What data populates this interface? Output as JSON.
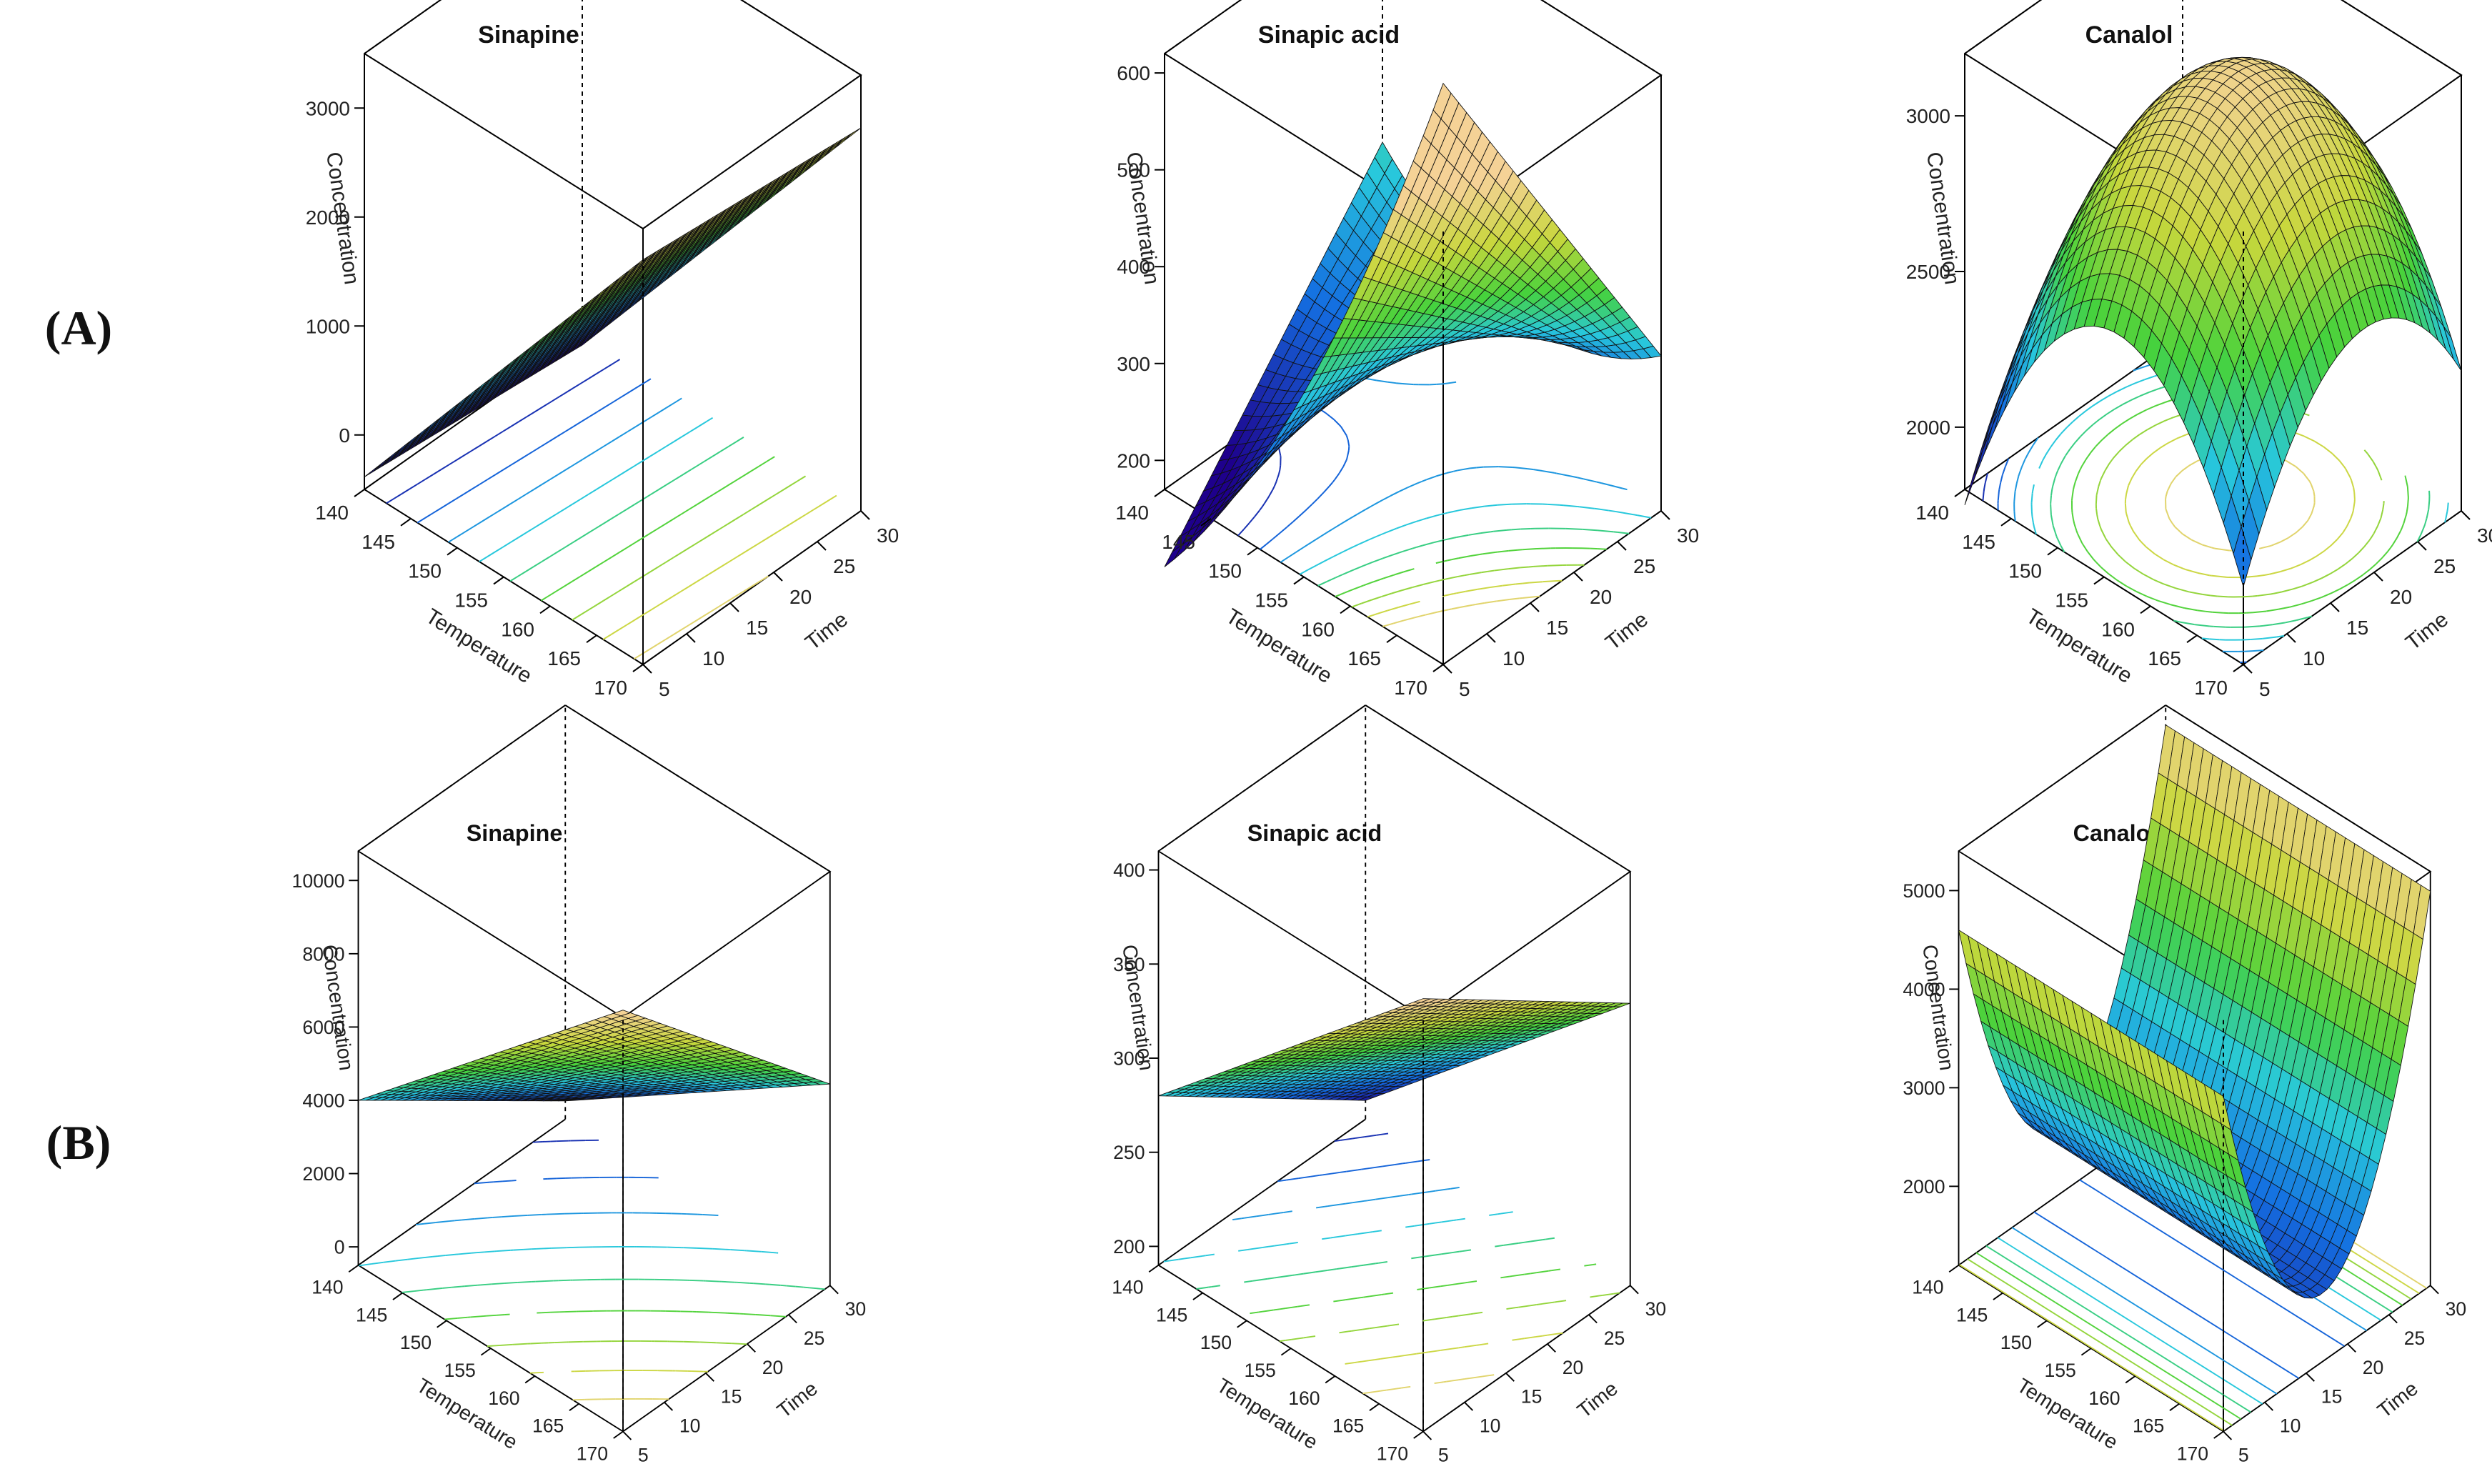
{
  "figure": {
    "row_labels": [
      "(A)",
      "(B)"
    ]
  },
  "chart_data": [
    {
      "type": "surface3d",
      "row": "A",
      "title": "Sinapine",
      "xlabel": "Temperature",
      "ylabel": "Time",
      "zlabel": "Concentration",
      "x_ticks": [
        "140",
        "145",
        "150",
        "155",
        "160",
        "165",
        "170"
      ],
      "y_ticks": [
        "5",
        "10",
        "15",
        "20",
        "25",
        "30"
      ],
      "z_ticks": [
        "0",
        "1000",
        "2000",
        "3000"
      ],
      "xlim": [
        140,
        170
      ],
      "ylim": [
        5,
        30
      ],
      "zlim": [
        -500,
        3500
      ],
      "surface": {
        "form": "quadratic",
        "c0": 1315,
        "cx": -1800,
        "cy": -100,
        "cxx": 0,
        "cyy": 0,
        "cxy": 0
      }
    },
    {
      "type": "surface3d",
      "row": "A",
      "title": "Sinapic acid",
      "xlabel": "Temperature",
      "ylabel": "Time",
      "zlabel": "Concentration",
      "x_ticks": [
        "140",
        "145",
        "150",
        "155",
        "160",
        "165",
        "170"
      ],
      "y_ticks": [
        "5",
        "10",
        "15",
        "20",
        "25",
        "30"
      ],
      "z_ticks": [
        "200",
        "300",
        "400",
        "500",
        "600"
      ],
      "xlim": [
        140,
        170
      ],
      "ylim": [
        5,
        30
      ],
      "zlim": [
        170,
        620
      ],
      "surface": {
        "form": "quadratic",
        "c0": 320,
        "cx": -160,
        "cy": -40,
        "cxx": 70,
        "cyy": 0,
        "cxy": 180
      }
    },
    {
      "type": "surface3d",
      "row": "A",
      "title": "Canalol",
      "xlabel": "Temperature",
      "ylabel": "Time",
      "zlabel": "Concentration",
      "x_ticks": [
        "140",
        "145",
        "150",
        "155",
        "160",
        "165",
        "170"
      ],
      "y_ticks": [
        "5",
        "10",
        "15",
        "20",
        "25",
        "30"
      ],
      "z_ticks": [
        "2000",
        "2500",
        "3000"
      ],
      "xlim": [
        140,
        170
      ],
      "ylim": [
        5,
        30
      ],
      "zlim": [
        1800,
        3200
      ],
      "surface": {
        "form": "quadratic",
        "c0": 3150,
        "cx": -150,
        "cy": 100,
        "cxx": -700,
        "cyy": -450,
        "cxy": 0
      }
    },
    {
      "type": "surface3d",
      "row": "B",
      "title": "Sinapine",
      "xlabel": "Temperature",
      "ylabel": "Time",
      "zlabel": "Concentration",
      "x_ticks": [
        "140",
        "145",
        "150",
        "155",
        "160",
        "165",
        "170"
      ],
      "y_ticks": [
        "5",
        "10",
        "15",
        "20",
        "25",
        "30"
      ],
      "z_ticks": [
        "0",
        "2000",
        "4000",
        "6000",
        "8000",
        "10000"
      ],
      "xlim": [
        140,
        170
      ],
      "ylim": [
        5,
        30
      ],
      "zlim": [
        -500,
        10800
      ],
      "surface": {
        "form": "quadratic",
        "c0": 5000,
        "cx": -3000,
        "cy": -2500,
        "cxx": 0,
        "cyy": 0,
        "cxy": 500
      }
    },
    {
      "type": "surface3d",
      "row": "B",
      "title": "Sinapic acid",
      "xlabel": "Temperature",
      "ylabel": "Time",
      "zlabel": "Concentration",
      "x_ticks": [
        "140",
        "145",
        "150",
        "155",
        "160",
        "165",
        "170"
      ],
      "y_ticks": [
        "5",
        "10",
        "15",
        "20",
        "25",
        "30"
      ],
      "z_ticks": [
        "200",
        "250",
        "300",
        "350",
        "400"
      ],
      "xlim": [
        140,
        170
      ],
      "ylim": [
        5,
        30
      ],
      "zlim": [
        190,
        410
      ],
      "surface": {
        "form": "quadratic",
        "c0": 310,
        "cx": -70,
        "cy": -40,
        "cxx": 0,
        "cyy": 0,
        "cxy": 0
      }
    },
    {
      "type": "surface3d",
      "row": "B",
      "title": "Canalol",
      "xlabel": "Temperature",
      "ylabel": "Time",
      "zlabel": "Concentration",
      "x_ticks": [
        "140",
        "145",
        "150",
        "155",
        "160",
        "165",
        "170"
      ],
      "y_ticks": [
        "5",
        "10",
        "15",
        "20",
        "25",
        "30"
      ],
      "z_ticks": [
        "2000",
        "3000",
        "4000",
        "5000"
      ],
      "xlim": [
        140,
        170
      ],
      "ylim": [
        5,
        30
      ],
      "zlim": [
        1200,
        5400
      ],
      "surface": {
        "form": "quadratic",
        "c0": 1900,
        "cx": 0,
        "cy": 300,
        "cxx": 0,
        "cyy": 3000,
        "cxy": 0
      }
    }
  ]
}
